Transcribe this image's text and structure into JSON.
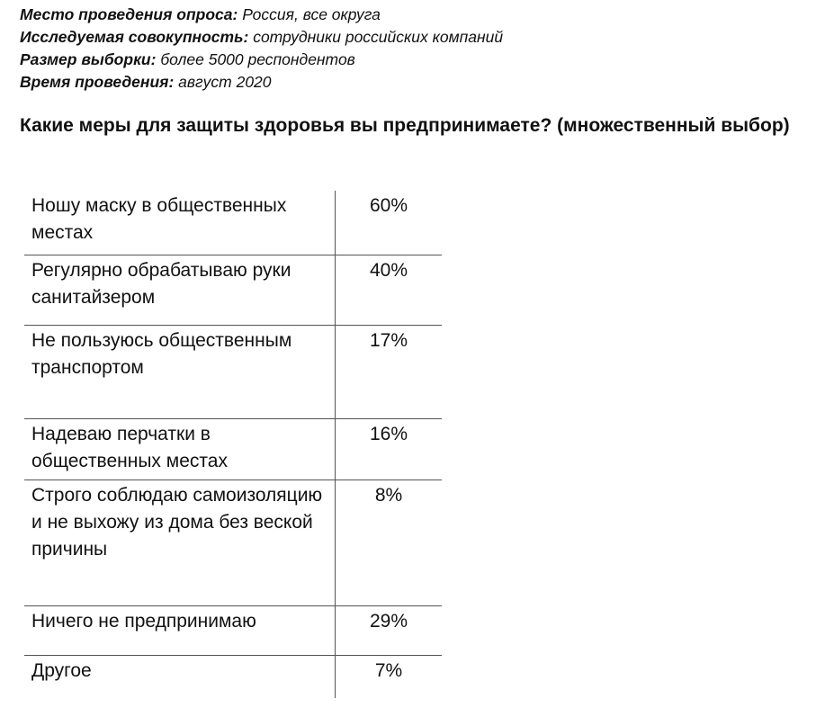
{
  "meta": {
    "items": [
      {
        "key": "Место проведения опроса:",
        "value": "Россия, все округа"
      },
      {
        "key": "Исследуемая совокупность:",
        "value": "сотрудники российских компаний"
      },
      {
        "key": "Размер выборки:",
        "value": "более 5000 респондентов"
      },
      {
        "key": "Время проведения:",
        "value": "август 2020"
      }
    ]
  },
  "question": "Какие меры для защиты здоровья вы предпринимаете? (множественный выбор)",
  "results": {
    "rows": [
      {
        "label": "Ношу маску в общественных местах",
        "value": "60%"
      },
      {
        "label": "Регулярно обрабатываю руки санитайзером",
        "value": "40%"
      },
      {
        "label": "Не пользуюсь общественным транспортом",
        "value": "17%"
      },
      {
        "label": "Надеваю перчатки в общественных местах",
        "value": "16%"
      },
      {
        "label": "Строго соблюдаю самоизоляцию и не выхожу из дома без веской причины",
        "value": "8%"
      },
      {
        "label": "Ничего не предпринимаю",
        "value": "29%"
      },
      {
        "label": "Другое",
        "value": "7%"
      }
    ]
  }
}
